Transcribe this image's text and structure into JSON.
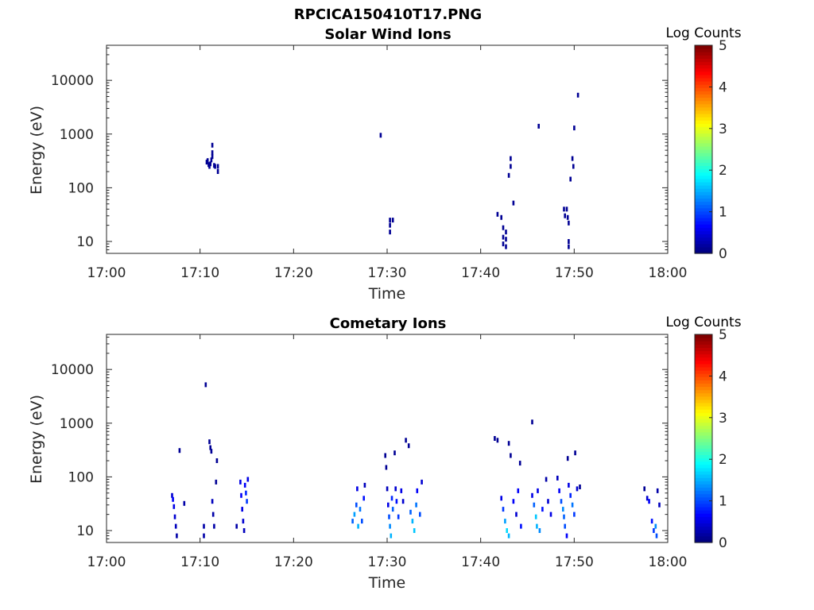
{
  "figure_title": "RPCICA150410T17.PNG",
  "colors": {
    "axis": "#262626",
    "background": "#ffffff",
    "colormap": "jet"
  },
  "chart_data": [
    {
      "type": "heatmap",
      "title": "Solar Wind Ions",
      "xlabel": "Time",
      "ylabel": "Energy (eV)",
      "x_ticks": [
        "17:00",
        "17:10",
        "17:20",
        "17:30",
        "17:40",
        "17:50",
        "18:00"
      ],
      "y_scale": "log",
      "y_ticks": [
        "10",
        "100",
        "1000",
        "10000"
      ],
      "ylim": [
        6,
        45000
      ],
      "colorbar": {
        "title": "Log Counts",
        "ticks": [
          "0",
          "1",
          "2",
          "3",
          "4",
          "5"
        ],
        "range": [
          0,
          5
        ]
      },
      "cells": [
        [
          10.7,
          300,
          0.1
        ],
        [
          10.8,
          320,
          0.1
        ],
        [
          10.9,
          270,
          0.1
        ],
        [
          11.0,
          250,
          0.1
        ],
        [
          11.1,
          280,
          0.1
        ],
        [
          11.2,
          330,
          0.1
        ],
        [
          11.3,
          620,
          0.1
        ],
        [
          11.3,
          450,
          0.1
        ],
        [
          11.3,
          380,
          0.1
        ],
        [
          11.5,
          260,
          0.1
        ],
        [
          11.6,
          250,
          0.1
        ],
        [
          11.9,
          250,
          0.1
        ],
        [
          11.9,
          200,
          0.1
        ],
        [
          29.3,
          950,
          0.1
        ],
        [
          30.3,
          25,
          0.1
        ],
        [
          30.3,
          20,
          0.1
        ],
        [
          30.3,
          15,
          0.1
        ],
        [
          30.6,
          25,
          0.1
        ],
        [
          41.8,
          32,
          0.1
        ],
        [
          42.2,
          28,
          0.1
        ],
        [
          42.4,
          18,
          0.1
        ],
        [
          42.4,
          12,
          0.1
        ],
        [
          42.4,
          9,
          0.1
        ],
        [
          42.7,
          15,
          0.1
        ],
        [
          42.7,
          11,
          0.1
        ],
        [
          42.7,
          8,
          0.1
        ],
        [
          43.2,
          350,
          0.1
        ],
        [
          43.2,
          250,
          0.1
        ],
        [
          43.0,
          170,
          0.1
        ],
        [
          43.5,
          52,
          0.1
        ],
        [
          46.2,
          1400,
          0.1
        ],
        [
          48.9,
          40,
          0.1
        ],
        [
          49.0,
          30,
          0.1
        ],
        [
          49.2,
          40,
          0.1
        ],
        [
          49.3,
          28,
          0.1
        ],
        [
          49.4,
          22,
          0.1
        ],
        [
          49.4,
          10,
          0.1
        ],
        [
          49.4,
          8,
          0.1
        ],
        [
          49.6,
          145,
          0.1
        ],
        [
          49.8,
          350,
          0.1
        ],
        [
          49.9,
          250,
          0.1
        ],
        [
          50.0,
          1300,
          0.1
        ],
        [
          50.4,
          5300,
          0.1
        ]
      ]
    },
    {
      "type": "heatmap",
      "title": "Cometary Ions",
      "xlabel": "Time",
      "ylabel": "Energy (eV)",
      "x_ticks": [
        "17:00",
        "17:10",
        "17:20",
        "17:30",
        "17:40",
        "17:50",
        "18:00"
      ],
      "y_scale": "log",
      "y_ticks": [
        "10",
        "100",
        "1000",
        "10000"
      ],
      "ylim": [
        6,
        45000
      ],
      "colorbar": {
        "title": "Log Counts",
        "ticks": [
          "0",
          "1",
          "2",
          "3",
          "4",
          "5"
        ],
        "range": [
          0,
          5
        ]
      },
      "cells": [
        [
          7.0,
          45,
          0.4
        ],
        [
          7.1,
          38,
          0.6
        ],
        [
          7.2,
          28,
          0.5
        ],
        [
          7.3,
          18,
          0.4
        ],
        [
          7.4,
          12,
          0.3
        ],
        [
          7.5,
          8,
          0.2
        ],
        [
          7.8,
          310,
          0.1
        ],
        [
          8.3,
          32,
          0.2
        ],
        [
          10.4,
          12,
          0.2
        ],
        [
          10.4,
          8,
          0.2
        ],
        [
          10.6,
          5200,
          0.1
        ],
        [
          11.0,
          450,
          0.1
        ],
        [
          11.1,
          350,
          0.1
        ],
        [
          11.2,
          300,
          0.1
        ],
        [
          11.3,
          35,
          0.3
        ],
        [
          11.4,
          20,
          0.2
        ],
        [
          11.5,
          12,
          0.2
        ],
        [
          11.7,
          80,
          0.1
        ],
        [
          11.8,
          200,
          0.1
        ],
        [
          13.9,
          12,
          0.2
        ],
        [
          14.3,
          80,
          0.5
        ],
        [
          14.4,
          45,
          0.6
        ],
        [
          14.5,
          25,
          0.5
        ],
        [
          14.6,
          15,
          0.4
        ],
        [
          14.7,
          10,
          0.3
        ],
        [
          14.8,
          70,
          0.6
        ],
        [
          14.9,
          50,
          0.8
        ],
        [
          15.0,
          35,
          0.9
        ],
        [
          15.1,
          90,
          0.5
        ],
        [
          26.3,
          15,
          1.1
        ],
        [
          26.5,
          20,
          1.4
        ],
        [
          26.7,
          30,
          1.0
        ],
        [
          26.8,
          60,
          0.5
        ],
        [
          26.9,
          12,
          1.5
        ],
        [
          27.1,
          25,
          1.2
        ],
        [
          27.3,
          15,
          1.0
        ],
        [
          27.5,
          40,
          0.7
        ],
        [
          27.6,
          70,
          0.3
        ],
        [
          29.8,
          250,
          0.1
        ],
        [
          29.9,
          150,
          0.1
        ],
        [
          30.0,
          60,
          0.3
        ],
        [
          30.1,
          30,
          0.5
        ],
        [
          30.2,
          18,
          1.0
        ],
        [
          30.3,
          12,
          1.3
        ],
        [
          30.4,
          8,
          1.5
        ],
        [
          30.5,
          40,
          0.8
        ],
        [
          30.6,
          25,
          1.1
        ],
        [
          30.8,
          280,
          0.1
        ],
        [
          30.9,
          60,
          0.4
        ],
        [
          31.0,
          35,
          0.7
        ],
        [
          31.2,
          18,
          0.9
        ],
        [
          31.5,
          55,
          0.5
        ],
        [
          31.7,
          35,
          0.4
        ],
        [
          32.0,
          480,
          0.1
        ],
        [
          32.3,
          380,
          0.1
        ],
        [
          32.5,
          22,
          1.1
        ],
        [
          32.7,
          15,
          1.5
        ],
        [
          32.9,
          10,
          1.6
        ],
        [
          33.1,
          30,
          1.2
        ],
        [
          33.2,
          55,
          0.6
        ],
        [
          33.5,
          20,
          1.0
        ],
        [
          33.7,
          80,
          0.4
        ],
        [
          41.5,
          520,
          0.1
        ],
        [
          41.8,
          480,
          0.1
        ],
        [
          42.2,
          40,
          0.5
        ],
        [
          42.4,
          25,
          0.9
        ],
        [
          42.6,
          15,
          1.4
        ],
        [
          42.8,
          10,
          1.7
        ],
        [
          43.0,
          8,
          1.5
        ],
        [
          43.0,
          420,
          0.1
        ],
        [
          43.2,
          250,
          0.1
        ],
        [
          43.5,
          35,
          0.6
        ],
        [
          43.8,
          20,
          0.4
        ],
        [
          44.0,
          55,
          0.6
        ],
        [
          44.2,
          180,
          0.1
        ],
        [
          44.3,
          12,
          0.7
        ],
        [
          45.5,
          1050,
          0.1
        ],
        [
          45.5,
          45,
          0.5
        ],
        [
          45.7,
          30,
          1.1
        ],
        [
          45.9,
          18,
          1.6
        ],
        [
          46.0,
          12,
          1.5
        ],
        [
          46.1,
          55,
          0.5
        ],
        [
          46.3,
          10,
          1.3
        ],
        [
          46.6,
          25,
          0.7
        ],
        [
          47.0,
          90,
          0.2
        ],
        [
          47.2,
          35,
          0.4
        ],
        [
          47.5,
          20,
          0.5
        ],
        [
          48.2,
          95,
          0.3
        ],
        [
          48.4,
          55,
          0.6
        ],
        [
          48.6,
          35,
          1.0
        ],
        [
          48.8,
          25,
          1.3
        ],
        [
          48.9,
          18,
          1.1
        ],
        [
          49.0,
          12,
          1.0
        ],
        [
          49.2,
          8,
          0.6
        ],
        [
          49.3,
          220,
          0.1
        ],
        [
          49.4,
          70,
          0.5
        ],
        [
          49.6,
          45,
          0.8
        ],
        [
          49.8,
          30,
          1.2
        ],
        [
          50.0,
          20,
          0.9
        ],
        [
          50.1,
          280,
          0.1
        ],
        [
          50.3,
          60,
          0.4
        ],
        [
          50.6,
          65,
          0.1
        ],
        [
          57.5,
          60,
          0.1
        ],
        [
          57.8,
          40,
          0.4
        ],
        [
          58.0,
          35,
          0.6
        ],
        [
          58.3,
          15,
          0.7
        ],
        [
          58.5,
          10,
          0.9
        ],
        [
          58.7,
          12,
          1.3
        ],
        [
          58.8,
          8,
          1.0
        ],
        [
          58.9,
          55,
          0.2
        ],
        [
          59.1,
          30,
          0.3
        ]
      ]
    }
  ]
}
